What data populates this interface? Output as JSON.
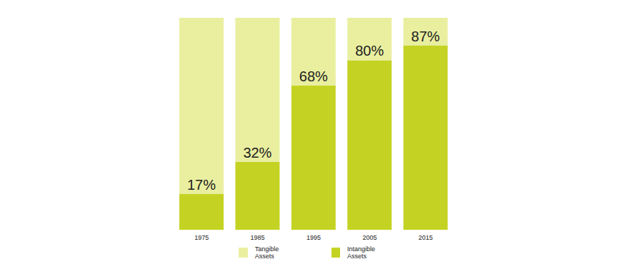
{
  "chart_data": {
    "type": "bar",
    "stacked": true,
    "tick_labels": "x",
    "categories": [
      "1975",
      "1985",
      "1995",
      "2005",
      "2015"
    ],
    "ylim": [
      0,
      100
    ],
    "series": [
      {
        "name": "Tangible Assets",
        "color": "#e9ef9f",
        "values": [
          83,
          68,
          32,
          20,
          13
        ]
      },
      {
        "name": "Intangible Assets",
        "color": "#c4d323",
        "values": [
          17,
          32,
          68,
          80,
          87
        ],
        "data_labels": true,
        "value_labels": [
          "17%",
          "32%",
          "68%",
          "80%",
          "87%"
        ]
      }
    ]
  }
}
